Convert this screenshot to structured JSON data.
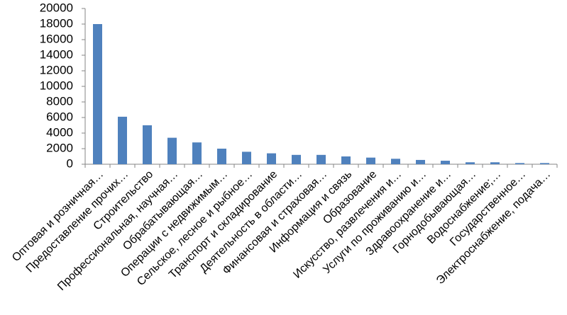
{
  "chart_data": {
    "type": "bar",
    "categories": [
      "Оптовая и розничная…",
      "Предоставление прочих…",
      "Строительство",
      "Профессиональная, научная…",
      "Обрабатывающая…",
      "Операции с недвижимым…",
      "Сельское, лесное и рыбное…",
      "Транспорт и складирование",
      "Деятельность в области…",
      "Финансовая и страховая…",
      "Информация и связь",
      "Образование",
      "Искусство, развлечения и…",
      "Услуги по проживанию и…",
      "Здравоохранение и…",
      "Горнодобывающая…",
      "Водоснабжение;…",
      "Государственное…",
      "Электроснабжение, подача…"
    ],
    "values": [
      18000,
      6100,
      5000,
      3400,
      2800,
      2000,
      1600,
      1400,
      1200,
      1200,
      1000,
      850,
      700,
      550,
      450,
      250,
      250,
      150,
      150
    ],
    "color": "#4f81bd",
    "ylim": [
      0,
      20000
    ],
    "yticks": [
      0,
      2000,
      4000,
      6000,
      8000,
      10000,
      12000,
      14000,
      16000,
      18000,
      20000
    ],
    "grid": false
  }
}
